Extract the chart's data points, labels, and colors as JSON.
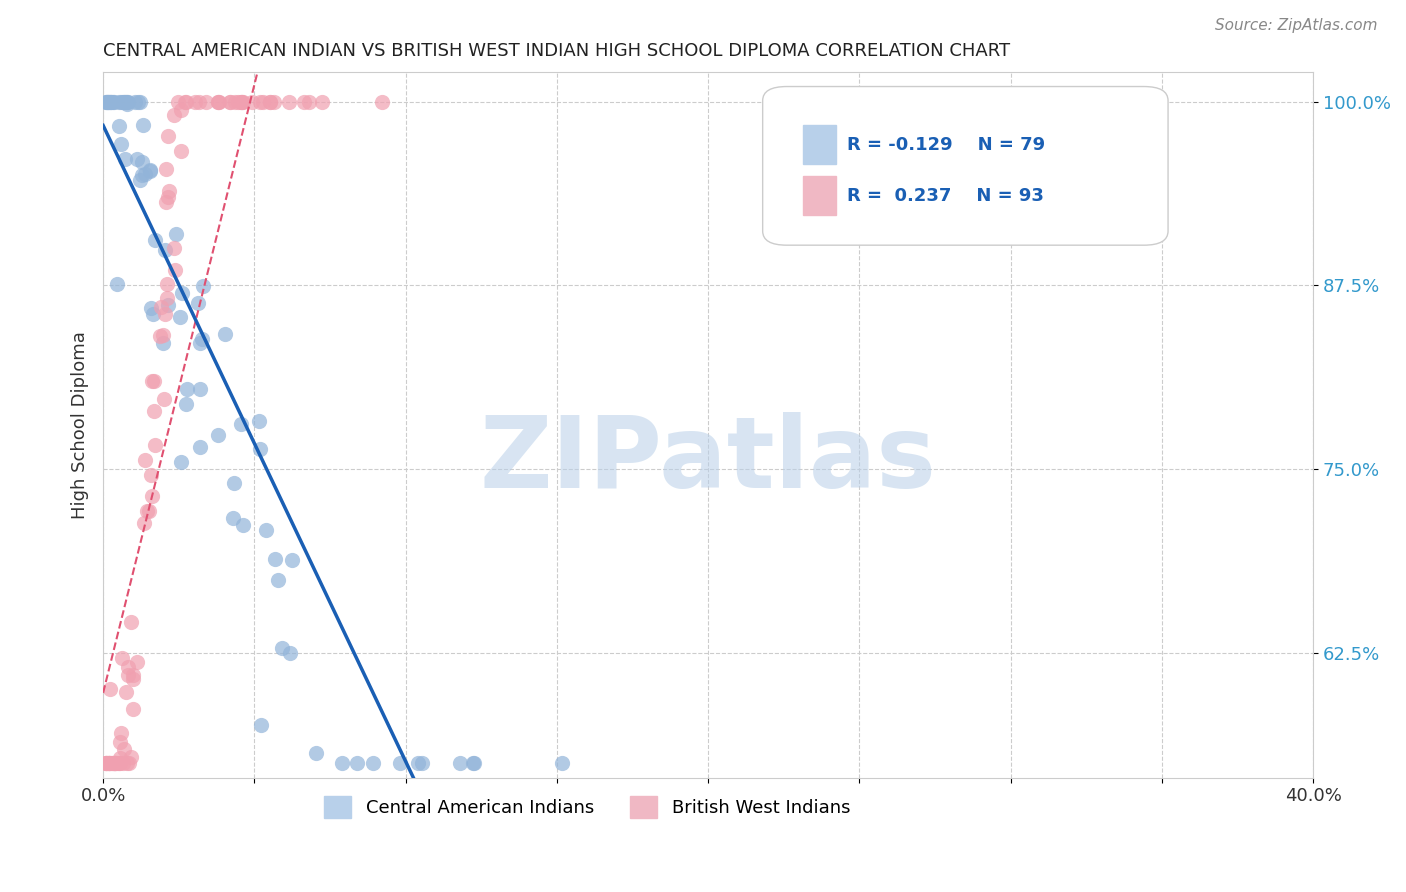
{
  "title": "CENTRAL AMERICAN INDIAN VS BRITISH WEST INDIAN HIGH SCHOOL DIPLOMA CORRELATION CHART",
  "source": "Source: ZipAtlas.com",
  "xlabel": "",
  "ylabel": "High School Diploma",
  "xlim": [
    0.0,
    0.4
  ],
  "ylim": [
    0.54,
    1.02
  ],
  "xticks": [
    0.0,
    0.05,
    0.1,
    0.15,
    0.2,
    0.25,
    0.3,
    0.35,
    0.4
  ],
  "yticks": [
    0.625,
    0.75,
    0.875,
    1.0
  ],
  "ytick_labels": [
    "62.5%",
    "75.0%",
    "87.5%",
    "100.0%"
  ],
  "xtick_labels": [
    "0.0%",
    "",
    "",
    "",
    "",
    "",
    "",
    "",
    "40.0%"
  ],
  "r_blue": -0.129,
  "n_blue": 79,
  "r_pink": 0.237,
  "n_pink": 93,
  "blue_color": "#92b4d9",
  "pink_color": "#f0a0b0",
  "blue_line_color": "#1a5fb4",
  "pink_line_color": "#e05070",
  "grid_color": "#cccccc",
  "background_color": "#ffffff",
  "watermark_text": "ZIPatlas",
  "watermark_color": "#b8cfe8",
  "legend_r_color": "#1a5fb4"
}
